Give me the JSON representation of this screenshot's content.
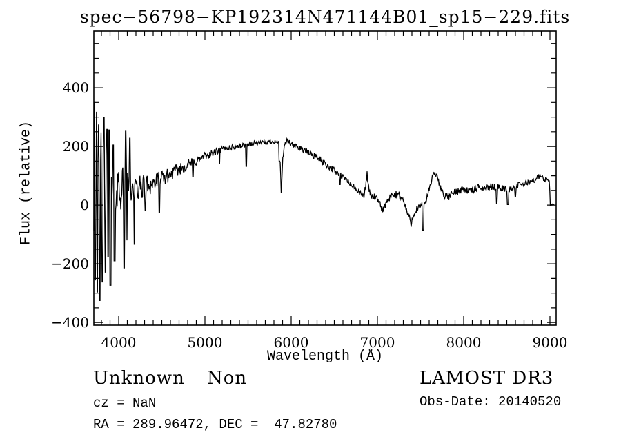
{
  "title": "spec−56798−KP192314N471144B01_sp15−229.fits",
  "axes": {
    "xlabel": "Wavelength (Å)",
    "ylabel": "Flux (relative)"
  },
  "annotations": {
    "class_label": "Unknown",
    "subclass_label": "Non",
    "cz_line": "cz = NaN",
    "radec_line": "RA = 289.96472, DEC =  47.82780",
    "survey_label": "LAMOST DR3",
    "obs_date_line": "Obs-Date: 20140520"
  },
  "colors": {
    "line": "#000000",
    "frame": "#000000",
    "background": "#ffffff"
  },
  "chart_data": {
    "type": "line",
    "title": "spec−56798−KP192314N471144B01_sp15−229.fits",
    "xlabel": "Wavelength (Å)",
    "ylabel": "Flux (relative)",
    "series_name": "Flux (relative)",
    "grid": false,
    "legend": "none",
    "xlim": [
      3712,
      9072
    ],
    "ylim": [
      -409,
      593
    ],
    "x_ticks": [
      {
        "value": 4000,
        "label": "4000"
      },
      {
        "value": 5000,
        "label": "5000"
      },
      {
        "value": 6000,
        "label": "6000"
      },
      {
        "value": 7000,
        "label": "7000"
      },
      {
        "value": 8000,
        "label": "8000"
      },
      {
        "value": 9000,
        "label": "9000"
      }
    ],
    "y_ticks": [
      {
        "value": -400,
        "label": "−400"
      },
      {
        "value": -200,
        "label": "−200"
      },
      {
        "value": 0,
        "label": "0"
      },
      {
        "value": 200,
        "label": "200"
      },
      {
        "value": 400,
        "label": "400"
      }
    ],
    "x_minor_step": 100,
    "y_minor_step": 50,
    "spectrum": {
      "start": 3712,
      "end": 9050,
      "step": 6,
      "seed": 42,
      "continuum": [
        [
          3712,
          0
        ],
        [
          3760,
          35
        ],
        [
          3820,
          48
        ],
        [
          3900,
          55
        ],
        [
          4000,
          62
        ],
        [
          4100,
          58
        ],
        [
          4200,
          52
        ],
        [
          4300,
          66
        ],
        [
          4400,
          75
        ],
        [
          4500,
          88
        ],
        [
          4600,
          105
        ],
        [
          4700,
          122
        ],
        [
          4800,
          138
        ],
        [
          4900,
          150
        ],
        [
          5000,
          166
        ],
        [
          5100,
          178
        ],
        [
          5200,
          190
        ],
        [
          5300,
          197
        ],
        [
          5400,
          201
        ],
        [
          5500,
          207
        ],
        [
          5600,
          212
        ],
        [
          5700,
          213
        ],
        [
          5800,
          218
        ],
        [
          5855,
          212
        ],
        [
          5870,
          170
        ],
        [
          5885,
          38
        ],
        [
          5900,
          150
        ],
        [
          5925,
          205
        ],
        [
          5955,
          222
        ],
        [
          6000,
          205
        ],
        [
          6100,
          196
        ],
        [
          6200,
          178
        ],
        [
          6300,
          163
        ],
        [
          6400,
          140
        ],
        [
          6500,
          118
        ],
        [
          6600,
          95
        ],
        [
          6700,
          68
        ],
        [
          6800,
          40
        ],
        [
          6845,
          30
        ],
        [
          6865,
          70
        ],
        [
          6880,
          110
        ],
        [
          6895,
          60
        ],
        [
          6920,
          35
        ],
        [
          6980,
          25
        ],
        [
          7030,
          0
        ],
        [
          7060,
          -18
        ],
        [
          7100,
          5
        ],
        [
          7160,
          30
        ],
        [
          7250,
          38
        ],
        [
          7300,
          15
        ],
        [
          7345,
          -25
        ],
        [
          7390,
          -62
        ],
        [
          7420,
          -30
        ],
        [
          7460,
          -12
        ],
        [
          7510,
          -5
        ],
        [
          7560,
          12
        ],
        [
          7600,
          55
        ],
        [
          7640,
          95
        ],
        [
          7665,
          112
        ],
        [
          7695,
          92
        ],
        [
          7730,
          60
        ],
        [
          7780,
          32
        ],
        [
          7830,
          28
        ],
        [
          7880,
          42
        ],
        [
          7950,
          50
        ],
        [
          8000,
          55
        ],
        [
          8060,
          48
        ],
        [
          8120,
          52
        ],
        [
          8180,
          60
        ],
        [
          8250,
          58
        ],
        [
          8310,
          62
        ],
        [
          8420,
          60
        ],
        [
          8480,
          55
        ],
        [
          8560,
          58
        ],
        [
          8640,
          68
        ],
        [
          8720,
          75
        ],
        [
          8800,
          82
        ],
        [
          8860,
          95
        ],
        [
          8895,
          100
        ],
        [
          8930,
          85
        ],
        [
          8965,
          90
        ],
        [
          8995,
          78
        ],
        [
          9003,
          2
        ],
        [
          9050,
          2
        ]
      ],
      "sigma": [
        [
          3712,
          175
        ],
        [
          3780,
          160
        ],
        [
          3850,
          135
        ],
        [
          3920,
          110
        ],
        [
          3990,
          85
        ],
        [
          4060,
          72
        ],
        [
          4150,
          50
        ],
        [
          4250,
          42
        ],
        [
          4350,
          36
        ],
        [
          4500,
          28
        ],
        [
          4650,
          22
        ],
        [
          4800,
          18
        ],
        [
          5000,
          14
        ],
        [
          5200,
          11
        ],
        [
          5450,
          9
        ],
        [
          5700,
          7
        ],
        [
          5950,
          9
        ],
        [
          6200,
          11
        ],
        [
          6500,
          12
        ],
        [
          6800,
          11
        ],
        [
          7100,
          13
        ],
        [
          7400,
          13
        ],
        [
          7700,
          12
        ],
        [
          8000,
          12
        ],
        [
          8300,
          12
        ],
        [
          8600,
          11
        ],
        [
          8900,
          9
        ],
        [
          8990,
          7
        ],
        [
          9005,
          2
        ],
        [
          9060,
          2
        ]
      ],
      "features": [
        [
          3718,
          352,
          4
        ],
        [
          3726,
          -255,
          4
        ],
        [
          3741,
          318,
          4
        ],
        [
          3753,
          -298,
          4
        ],
        [
          3767,
          275,
          4
        ],
        [
          3781,
          -325,
          4
        ],
        [
          3796,
          248,
          4
        ],
        [
          3812,
          -262,
          4
        ],
        [
          3828,
          300,
          4
        ],
        [
          3845,
          -230,
          4
        ],
        [
          3864,
          258,
          4
        ],
        [
          3878,
          -175,
          4
        ],
        [
          3888,
          256,
          7
        ],
        [
          3904,
          -273,
          7
        ],
        [
          3936,
          205,
          6
        ],
        [
          3952,
          -190,
          6
        ],
        [
          4064,
          -214,
          6
        ],
        [
          4080,
          252,
          6
        ],
        [
          4096,
          -120,
          5
        ],
        [
          4128,
          228,
          6
        ],
        [
          4180,
          -135,
          5
        ],
        [
          4310,
          -18,
          5
        ],
        [
          4470,
          -25,
          5
        ],
        [
          4862,
          96,
          6
        ],
        [
          5170,
          140,
          5
        ],
        [
          5480,
          132,
          5
        ],
        [
          5865,
          150,
          5
        ],
        [
          6563,
          70,
          5
        ],
        [
          7528,
          -85,
          6
        ],
        [
          8384,
          6,
          6
        ],
        [
          8512,
          2,
          6
        ],
        [
          8598,
          30,
          5
        ]
      ]
    }
  }
}
